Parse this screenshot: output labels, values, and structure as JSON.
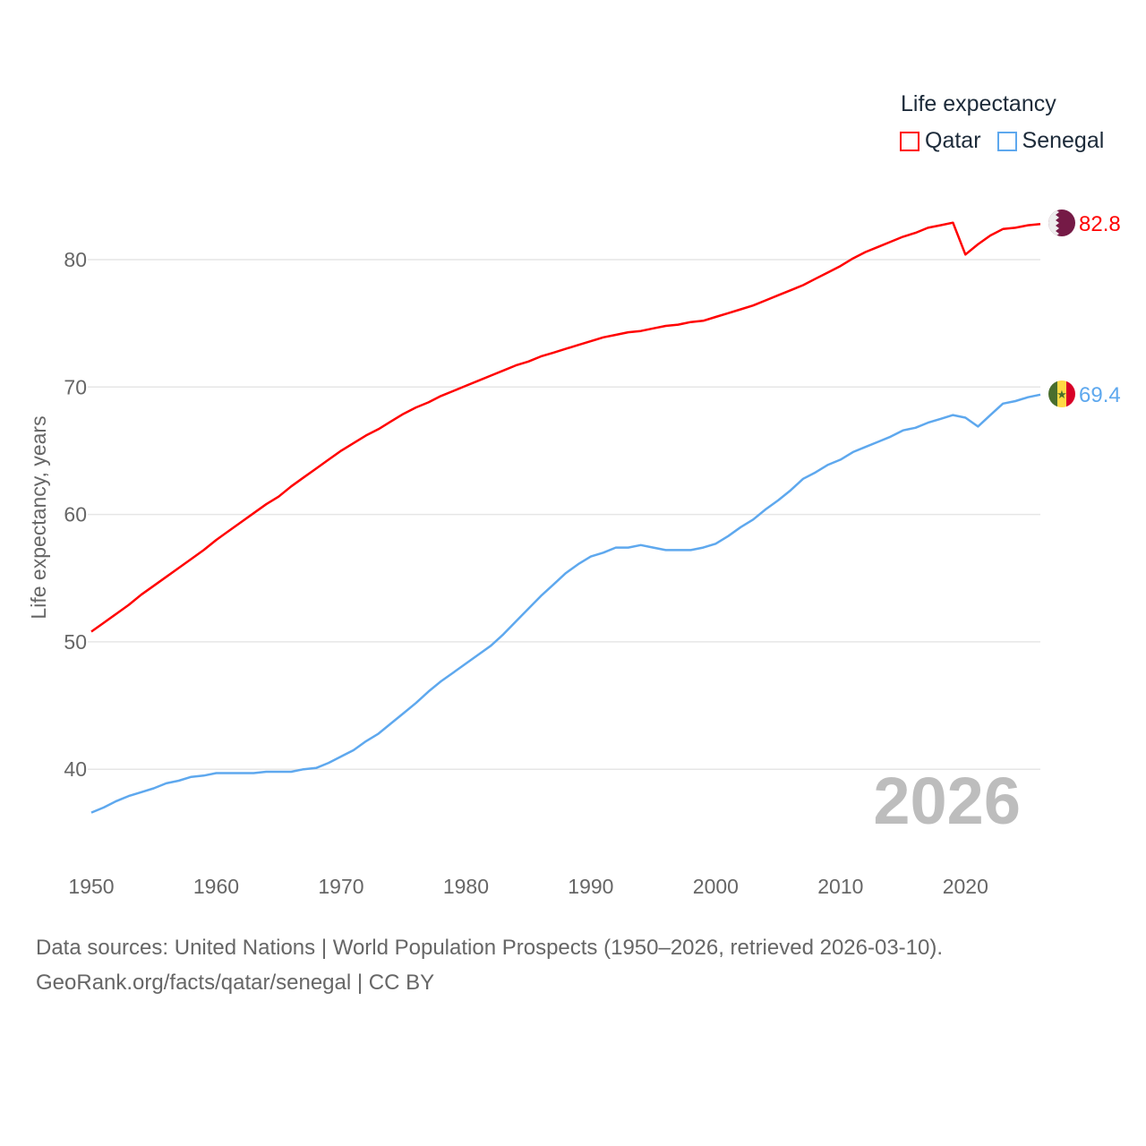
{
  "chart_data": {
    "type": "line",
    "title": "Life expectancy",
    "xlabel": "",
    "ylabel": "Life expectancy, years",
    "xlim": [
      1950,
      2026
    ],
    "ylim": [
      35,
      85
    ],
    "x_ticks": [
      1950,
      1960,
      1970,
      1980,
      1990,
      2000,
      2010,
      2020
    ],
    "y_ticks": [
      40,
      50,
      60,
      70,
      80
    ],
    "grid": true,
    "legend_position": "top-right",
    "year_watermark": "2026",
    "x_start": 1950,
    "series": [
      {
        "name": "Qatar",
        "color": "#ff0000",
        "end_label": "82.8",
        "flag": "qatar-flag",
        "values": [
          50.8,
          51.5,
          52.2,
          52.9,
          53.7,
          54.4,
          55.1,
          55.8,
          56.5,
          57.2,
          58.0,
          58.7,
          59.4,
          60.1,
          60.8,
          61.4,
          62.2,
          62.9,
          63.6,
          64.3,
          65.0,
          65.6,
          66.2,
          66.7,
          67.3,
          67.9,
          68.4,
          68.8,
          69.3,
          69.7,
          70.1,
          70.5,
          70.9,
          71.3,
          71.7,
          72.0,
          72.4,
          72.7,
          73.0,
          73.3,
          73.6,
          73.9,
          74.1,
          74.3,
          74.4,
          74.6,
          74.8,
          74.9,
          75.1,
          75.2,
          75.5,
          75.8,
          76.1,
          76.4,
          76.8,
          77.2,
          77.6,
          78.0,
          78.5,
          79.0,
          79.5,
          80.1,
          80.6,
          81.0,
          81.4,
          81.8,
          82.1,
          82.5,
          82.7,
          82.9,
          80.4,
          81.2,
          81.9,
          82.4,
          82.5,
          82.7,
          82.8
        ]
      },
      {
        "name": "Senegal",
        "color": "#5ea8ee",
        "end_label": "69.4",
        "flag": "senegal-flag",
        "values": [
          36.6,
          37.0,
          37.5,
          37.9,
          38.2,
          38.5,
          38.9,
          39.1,
          39.4,
          39.5,
          39.7,
          39.7,
          39.7,
          39.7,
          39.8,
          39.8,
          39.8,
          40.0,
          40.1,
          40.5,
          41.0,
          41.5,
          42.2,
          42.8,
          43.6,
          44.4,
          45.2,
          46.1,
          46.9,
          47.6,
          48.3,
          49.0,
          49.7,
          50.6,
          51.6,
          52.6,
          53.6,
          54.5,
          55.4,
          56.1,
          56.7,
          57.0,
          57.4,
          57.4,
          57.6,
          57.4,
          57.2,
          57.2,
          57.2,
          57.4,
          57.7,
          58.3,
          59.0,
          59.6,
          60.4,
          61.1,
          61.9,
          62.8,
          63.3,
          63.9,
          64.3,
          64.9,
          65.3,
          65.7,
          66.1,
          66.6,
          66.8,
          67.2,
          67.5,
          67.8,
          67.6,
          66.9,
          67.8,
          68.7,
          68.9,
          69.2,
          69.4
        ]
      }
    ]
  },
  "footer": {
    "sources": "Data sources: United Nations | World Population Prospects (1950–2026, retrieved 2026-03-10).",
    "credit": "GeoRank.org/facts/qatar/senegal | CC BY"
  }
}
